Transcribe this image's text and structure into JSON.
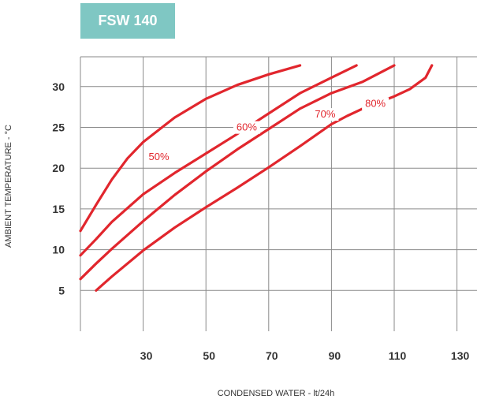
{
  "chart_data": {
    "type": "line",
    "title": "FSW 140",
    "xlabel": "CONDENSED WATER - lt/24h",
    "ylabel": "AMBIENT TEMPERATURE - °C",
    "xlim": [
      10,
      150
    ],
    "ylim": [
      0,
      33
    ],
    "x_ticks": [
      30,
      50,
      70,
      90,
      110,
      130
    ],
    "y_ticks": [
      5,
      10,
      15,
      20,
      25,
      30
    ],
    "grid": true,
    "color": "#e1262d",
    "badge_color": "#7fc7c3",
    "series": [
      {
        "name": "50%",
        "label_at": [
          35,
          21
        ],
        "points": [
          [
            10,
            12.3
          ],
          [
            15,
            15.5
          ],
          [
            20,
            18.6
          ],
          [
            25,
            21.2
          ],
          [
            30,
            23.2
          ],
          [
            40,
            26.2
          ],
          [
            50,
            28.5
          ],
          [
            60,
            30.2
          ],
          [
            70,
            31.5
          ],
          [
            80,
            32.6
          ]
        ]
      },
      {
        "name": "60%",
        "label_at": [
          63,
          24.6
        ],
        "points": [
          [
            10,
            9.3
          ],
          [
            15,
            11.3
          ],
          [
            20,
            13.4
          ],
          [
            30,
            16.8
          ],
          [
            40,
            19.4
          ],
          [
            50,
            21.8
          ],
          [
            60,
            24.2
          ],
          [
            70,
            26.7
          ],
          [
            80,
            29.2
          ],
          [
            90,
            31.1
          ],
          [
            98,
            32.6
          ]
        ]
      },
      {
        "name": "70%",
        "label_at": [
          88,
          26.2
        ],
        "points": [
          [
            10,
            6.4
          ],
          [
            15,
            8.3
          ],
          [
            20,
            10.1
          ],
          [
            30,
            13.5
          ],
          [
            40,
            16.7
          ],
          [
            50,
            19.6
          ],
          [
            60,
            22.3
          ],
          [
            70,
            24.8
          ],
          [
            80,
            27.3
          ],
          [
            90,
            29.2
          ],
          [
            100,
            30.6
          ],
          [
            110,
            32.6
          ]
        ]
      },
      {
        "name": "80%",
        "label_at": [
          104,
          27.5
        ],
        "points": [
          [
            15,
            5.0
          ],
          [
            20,
            6.7
          ],
          [
            30,
            9.9
          ],
          [
            40,
            12.7
          ],
          [
            50,
            15.2
          ],
          [
            60,
            17.6
          ],
          [
            70,
            20.1
          ],
          [
            80,
            22.7
          ],
          [
            90,
            25.4
          ],
          [
            95,
            26.4
          ],
          [
            100,
            27.3
          ],
          [
            110,
            28.8
          ],
          [
            115,
            29.7
          ],
          [
            120,
            31.1
          ],
          [
            122,
            32.6
          ]
        ]
      }
    ]
  }
}
